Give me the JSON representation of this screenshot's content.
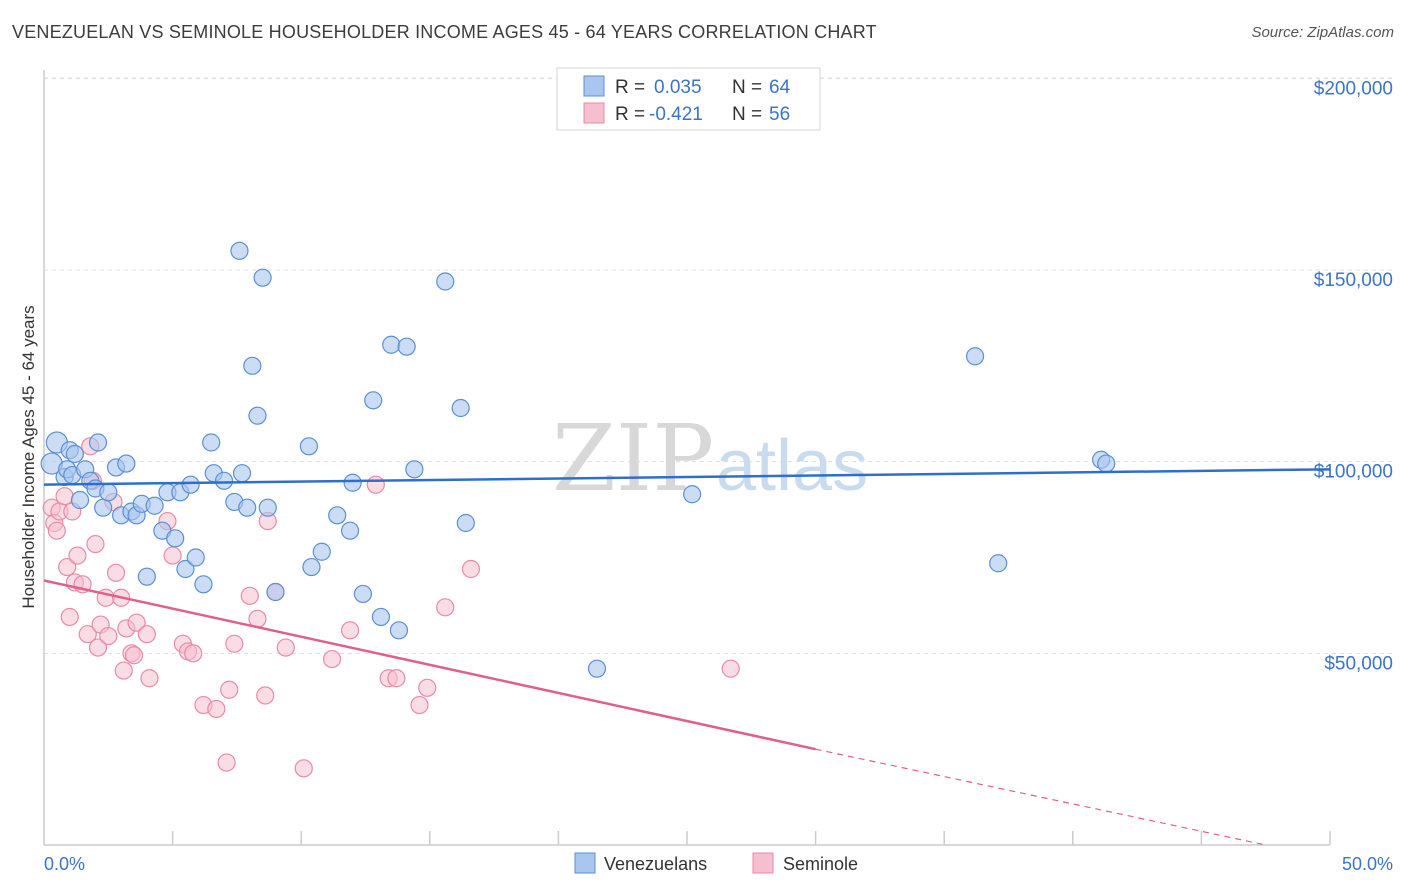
{
  "header": {
    "title": "VENEZUELAN VS SEMINOLE HOUSEHOLDER INCOME AGES 45 - 64 YEARS CORRELATION CHART",
    "source": "Source: ZipAtlas.com"
  },
  "watermark": {
    "zip": "ZIP",
    "atlas": "atlas"
  },
  "legend_top": [
    {
      "r_label": "R =",
      "r_value": "0.035",
      "n_label": "N =",
      "n_value": "64"
    },
    {
      "r_label": "R =",
      "r_value": "-0.421",
      "n_label": "N =",
      "n_value": "56"
    }
  ],
  "colors": {
    "venezuelans_fill": "#a9c7ee",
    "venezuelans_stroke": "#5b8fd4",
    "venezuelans_line": "#2f6fcb",
    "seminole_fill": "#f6bfd0",
    "seminole_stroke": "#e88aa8",
    "seminole_line": "#e0608c",
    "tick_text": "#3b74c8"
  },
  "chart_data": {
    "type": "scatter",
    "title": "VENEZUELAN VS SEMINOLE HOUSEHOLDER INCOME AGES 45 - 64 YEARS CORRELATION CHART",
    "xlabel": "",
    "ylabel": "Householder Income Ages 45 - 64 years",
    "xlim": [
      0,
      50
    ],
    "ylim": [
      0,
      210000
    ],
    "x_tick_labels": [
      "0.0%",
      "50.0%"
    ],
    "y_ticks": [
      50000,
      100000,
      150000,
      200000
    ],
    "y_tick_labels": [
      "$50,000",
      "$100,000",
      "$150,000",
      "$200,000"
    ],
    "grid": true,
    "legend_position": "bottom-center",
    "series": [
      {
        "name": "Venezuelans",
        "R": 0.035,
        "N": 64,
        "trend": {
          "x": [
            0,
            50
          ],
          "y": [
            94000,
            98000
          ]
        },
        "points": [
          [
            0.3,
            99500
          ],
          [
            0.5,
            105000
          ],
          [
            0.8,
            96000
          ],
          [
            0.9,
            98000
          ],
          [
            1.0,
            103000
          ],
          [
            1.1,
            96500
          ],
          [
            1.2,
            102000
          ],
          [
            1.4,
            90000
          ],
          [
            1.6,
            98000
          ],
          [
            1.8,
            95000
          ],
          [
            2.0,
            93000
          ],
          [
            2.1,
            105000
          ],
          [
            2.3,
            88000
          ],
          [
            2.5,
            92000
          ],
          [
            2.8,
            98500
          ],
          [
            3.0,
            86000
          ],
          [
            3.2,
            99500
          ],
          [
            3.4,
            87000
          ],
          [
            3.6,
            86000
          ],
          [
            3.8,
            89000
          ],
          [
            4.0,
            70000
          ],
          [
            4.3,
            88500
          ],
          [
            4.6,
            82000
          ],
          [
            4.8,
            92000
          ],
          [
            5.1,
            80000
          ],
          [
            5.3,
            92000
          ],
          [
            5.5,
            72000
          ],
          [
            5.7,
            94000
          ],
          [
            5.9,
            75000
          ],
          [
            6.2,
            68000
          ],
          [
            6.5,
            105000
          ],
          [
            6.6,
            97000
          ],
          [
            7.0,
            95000
          ],
          [
            7.4,
            89500
          ],
          [
            7.6,
            155000
          ],
          [
            7.7,
            97000
          ],
          [
            7.9,
            88000
          ],
          [
            8.3,
            112000
          ],
          [
            8.5,
            148000
          ],
          [
            8.7,
            88000
          ],
          [
            9.0,
            66000
          ],
          [
            10.3,
            104000
          ],
          [
            10.4,
            72500
          ],
          [
            10.8,
            76500
          ],
          [
            11.4,
            86000
          ],
          [
            11.9,
            82000
          ],
          [
            12.0,
            94500
          ],
          [
            12.4,
            65500
          ],
          [
            12.8,
            116000
          ],
          [
            13.1,
            59500
          ],
          [
            13.5,
            130500
          ],
          [
            13.8,
            56000
          ],
          [
            14.1,
            130000
          ],
          [
            14.4,
            98000
          ],
          [
            15.6,
            147000
          ],
          [
            16.2,
            114000
          ],
          [
            16.4,
            84000
          ],
          [
            21.5,
            46000
          ],
          [
            25.2,
            91500
          ],
          [
            36.2,
            127500
          ],
          [
            37.1,
            73500
          ],
          [
            41.1,
            100500
          ],
          [
            41.3,
            99500
          ],
          [
            8.1,
            125000
          ]
        ]
      },
      {
        "name": "Seminole",
        "R": -0.421,
        "N": 56,
        "trend": {
          "x": [
            0,
            30
          ],
          "y": [
            69000,
            25000
          ]
        },
        "trend_dashed": {
          "x": [
            30,
            47.5
          ],
          "y": [
            25000,
            0
          ]
        },
        "points": [
          [
            0.3,
            88000
          ],
          [
            0.4,
            84000
          ],
          [
            0.5,
            82000
          ],
          [
            0.6,
            87000
          ],
          [
            0.8,
            91000
          ],
          [
            0.9,
            72500
          ],
          [
            1.0,
            59500
          ],
          [
            1.1,
            87000
          ],
          [
            1.2,
            68500
          ],
          [
            1.3,
            75500
          ],
          [
            1.5,
            68000
          ],
          [
            1.7,
            55000
          ],
          [
            1.8,
            104000
          ],
          [
            1.9,
            95000
          ],
          [
            2.0,
            78500
          ],
          [
            2.1,
            51500
          ],
          [
            2.2,
            57500
          ],
          [
            2.4,
            64500
          ],
          [
            2.5,
            54500
          ],
          [
            2.7,
            89500
          ],
          [
            2.8,
            71000
          ],
          [
            3.0,
            64500
          ],
          [
            3.1,
            45500
          ],
          [
            3.2,
            56500
          ],
          [
            3.4,
            50000
          ],
          [
            3.5,
            49500
          ],
          [
            3.6,
            58000
          ],
          [
            4.0,
            55000
          ],
          [
            4.1,
            43500
          ],
          [
            4.8,
            84500
          ],
          [
            5.0,
            75500
          ],
          [
            5.4,
            52500
          ],
          [
            5.6,
            50500
          ],
          [
            5.8,
            50000
          ],
          [
            6.2,
            36500
          ],
          [
            6.7,
            35500
          ],
          [
            7.1,
            21500
          ],
          [
            7.2,
            40500
          ],
          [
            7.4,
            52500
          ],
          [
            8.0,
            65000
          ],
          [
            8.3,
            59000
          ],
          [
            8.6,
            39000
          ],
          [
            8.7,
            84500
          ],
          [
            9.0,
            66000
          ],
          [
            9.4,
            51500
          ],
          [
            10.1,
            20000
          ],
          [
            11.2,
            48500
          ],
          [
            11.9,
            56000
          ],
          [
            12.9,
            94000
          ],
          [
            13.4,
            43500
          ],
          [
            13.7,
            43500
          ],
          [
            14.6,
            36500
          ],
          [
            14.9,
            41000
          ],
          [
            15.6,
            62000
          ],
          [
            16.6,
            72000
          ],
          [
            26.7,
            46000
          ]
        ]
      }
    ]
  },
  "legend_bottom": [
    {
      "label": "Venezuelans"
    },
    {
      "label": "Seminole"
    }
  ]
}
